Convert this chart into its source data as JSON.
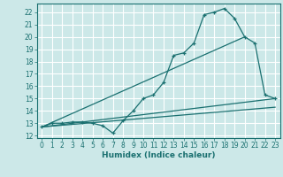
{
  "xlabel": "Humidex (Indice chaleur)",
  "bg_color": "#cce8e8",
  "grid_color": "#ffffff",
  "line_color": "#1a7070",
  "xlim": [
    -0.5,
    23.5
  ],
  "ylim": [
    11.8,
    22.7
  ],
  "yticks": [
    12,
    13,
    14,
    15,
    16,
    17,
    18,
    19,
    20,
    21,
    22
  ],
  "xticks": [
    0,
    1,
    2,
    3,
    4,
    5,
    6,
    7,
    8,
    9,
    10,
    11,
    12,
    13,
    14,
    15,
    16,
    17,
    18,
    19,
    20,
    21,
    22,
    23
  ],
  "series1_x": [
    0,
    1,
    2,
    3,
    4,
    5,
    6,
    7,
    8,
    9,
    10,
    11,
    12,
    13,
    14,
    15,
    16,
    17,
    18,
    19,
    20,
    21,
    22,
    23
  ],
  "series1_y": [
    12.7,
    13.0,
    13.0,
    13.1,
    13.1,
    13.0,
    12.8,
    12.2,
    13.2,
    14.0,
    15.0,
    15.3,
    16.3,
    18.5,
    18.7,
    19.5,
    21.8,
    22.0,
    22.3,
    21.5,
    20.0,
    19.5,
    15.3,
    15.0
  ],
  "series2_x": [
    0,
    23
  ],
  "series2_y": [
    12.7,
    15.0
  ],
  "series3_x": [
    0,
    20
  ],
  "series3_y": [
    12.7,
    20.0
  ],
  "series4_x": [
    0,
    23
  ],
  "series4_y": [
    12.7,
    14.3
  ],
  "tick_fontsize": 5.5,
  "xlabel_fontsize": 6.5
}
